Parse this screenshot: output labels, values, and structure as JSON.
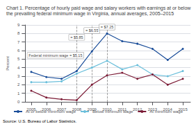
{
  "chart_data": {
    "type": "line",
    "title": "Chart 1. Percentage of hourly paid wage and salary workers with earnings at or below the prevailing federal minimum wage in Virginia, annual averages, 2005–2015",
    "ylabel": "Percent",
    "source": "Source: U.S. Bureau of Labor Statistics.",
    "x": [
      2005,
      2006,
      2007,
      2008,
      2009,
      2010,
      2011,
      2012,
      2013,
      2014,
      2015
    ],
    "series": [
      {
        "name": "At or below minimum wage",
        "color": "#1a4d99",
        "values": [
          3.5,
          2.9,
          2.7,
          3.6,
          5.9,
          8.0,
          7.1,
          6.8,
          6.2,
          4.9,
          6.2
        ]
      },
      {
        "name": "Below minimum wage",
        "color": "#6bbfdb",
        "values": [
          2.3,
          2.3,
          2.4,
          3.3,
          4.0,
          4.8,
          3.8,
          4.3,
          3.2,
          3.0,
          3.6
        ]
      },
      {
        "name": "At minimum wage",
        "color": "#7b1a35",
        "values": [
          1.3,
          0.5,
          0.3,
          0.2,
          2.0,
          3.1,
          3.4,
          2.7,
          3.2,
          2.0,
          2.7
        ]
      }
    ],
    "vlines": [
      2008,
      2009,
      2010
    ],
    "annotations": [
      {
        "text": "= $5.85",
        "x": 2008,
        "y": 7.55
      },
      {
        "text": "= $6.55",
        "x": 2009,
        "y": 8.35
      },
      {
        "text": "= $7.25",
        "x": 2010,
        "y": 8.75
      },
      {
        "text": "Federal minimum wage = $5.15",
        "x": 2006.6,
        "y": 5.45
      }
    ],
    "xlim": [
      2004.6,
      2015.5
    ],
    "xticks": [
      2005,
      2006,
      2007,
      2008,
      2009,
      2010,
      2011,
      2012,
      2013,
      2014,
      2015
    ],
    "ylim": [
      0,
      9
    ],
    "yticks": [
      0,
      1,
      2,
      3,
      4,
      5,
      6,
      7,
      8,
      9
    ],
    "grid": true,
    "legend": "bottom",
    "marker": "circle",
    "line_style": "solid"
  }
}
